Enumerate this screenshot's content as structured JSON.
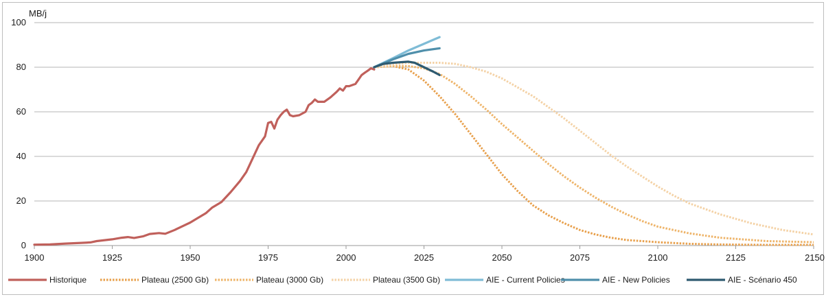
{
  "chart_data": {
    "type": "line",
    "ylabel": "MB/j",
    "xlim": [
      1900,
      2150
    ],
    "ylim": [
      0,
      100
    ],
    "x_ticks": [
      1900,
      1925,
      1950,
      1975,
      2000,
      2025,
      2050,
      2075,
      2100,
      2125,
      2150
    ],
    "y_ticks": [
      0,
      20,
      40,
      60,
      80,
      100
    ],
    "grid": "horizontal",
    "legend_position": "bottom",
    "series": [
      {
        "name": "Historique",
        "color": "#c0605b",
        "style": "solid",
        "points": [
          [
            1900,
            0.4
          ],
          [
            1905,
            0.5
          ],
          [
            1910,
            0.9
          ],
          [
            1915,
            1.2
          ],
          [
            1918,
            1.4
          ],
          [
            1920,
            2.0
          ],
          [
            1925,
            2.8
          ],
          [
            1928,
            3.5
          ],
          [
            1930,
            3.8
          ],
          [
            1932,
            3.4
          ],
          [
            1935,
            4.2
          ],
          [
            1937,
            5.2
          ],
          [
            1940,
            5.6
          ],
          [
            1942,
            5.3
          ],
          [
            1945,
            7.0
          ],
          [
            1948,
            9.0
          ],
          [
            1950,
            10.3
          ],
          [
            1952,
            12.0
          ],
          [
            1955,
            14.5
          ],
          [
            1957,
            17.0
          ],
          [
            1960,
            19.5
          ],
          [
            1963,
            24.0
          ],
          [
            1966,
            29.0
          ],
          [
            1968,
            33.0
          ],
          [
            1970,
            39.0
          ],
          [
            1972,
            45.0
          ],
          [
            1974,
            49.0
          ],
          [
            1975,
            55.0
          ],
          [
            1976,
            55.5
          ],
          [
            1977,
            52.5
          ],
          [
            1978,
            56.5
          ],
          [
            1979,
            58.5
          ],
          [
            1980,
            60.0
          ],
          [
            1981,
            61.0
          ],
          [
            1982,
            58.5
          ],
          [
            1983,
            58.0
          ],
          [
            1985,
            58.5
          ],
          [
            1987,
            60.0
          ],
          [
            1988,
            63.0
          ],
          [
            1989,
            64.0
          ],
          [
            1990,
            65.5
          ],
          [
            1991,
            64.5
          ],
          [
            1993,
            64.5
          ],
          [
            1995,
            66.5
          ],
          [
            1997,
            69.0
          ],
          [
            1998,
            70.5
          ],
          [
            1999,
            69.5
          ],
          [
            2000,
            71.5
          ],
          [
            2001,
            71.5
          ],
          [
            2003,
            72.5
          ],
          [
            2004,
            74.5
          ],
          [
            2005,
            76.5
          ],
          [
            2006,
            77.5
          ],
          [
            2007,
            78.5
          ],
          [
            2008,
            79.5
          ],
          [
            2009,
            79.0
          ]
        ]
      },
      {
        "name": "Plateau (2500 Gb)",
        "color": "#e8a04c",
        "style": "dotted",
        "points": [
          [
            2009,
            80.0
          ],
          [
            2015,
            80.5
          ],
          [
            2020,
            79.0
          ],
          [
            2025,
            74.0
          ],
          [
            2030,
            67.0
          ],
          [
            2035,
            59.0
          ],
          [
            2040,
            50.0
          ],
          [
            2045,
            41.0
          ],
          [
            2050,
            32.0
          ],
          [
            2055,
            24.5
          ],
          [
            2060,
            18.0
          ],
          [
            2065,
            13.5
          ],
          [
            2070,
            10.0
          ],
          [
            2075,
            7.0
          ],
          [
            2080,
            5.0
          ],
          [
            2085,
            3.5
          ],
          [
            2090,
            2.5
          ],
          [
            2100,
            1.5
          ],
          [
            2110,
            0.8
          ],
          [
            2120,
            0.5
          ],
          [
            2135,
            0.3
          ],
          [
            2150,
            0.3
          ]
        ]
      },
      {
        "name": "Plateau (3000 Gb)",
        "color": "#eeb469",
        "style": "dotted",
        "points": [
          [
            2009,
            80.0
          ],
          [
            2015,
            80.5
          ],
          [
            2020,
            80.5
          ],
          [
            2025,
            79.5
          ],
          [
            2030,
            77.0
          ],
          [
            2035,
            72.5
          ],
          [
            2040,
            67.0
          ],
          [
            2045,
            61.0
          ],
          [
            2050,
            54.5
          ],
          [
            2055,
            48.5
          ],
          [
            2060,
            42.5
          ],
          [
            2065,
            36.5
          ],
          [
            2070,
            31.0
          ],
          [
            2075,
            26.0
          ],
          [
            2080,
            21.5
          ],
          [
            2085,
            17.5
          ],
          [
            2090,
            14.0
          ],
          [
            2095,
            11.0
          ],
          [
            2100,
            8.5
          ],
          [
            2110,
            5.5
          ],
          [
            2120,
            3.5
          ],
          [
            2135,
            2.0
          ],
          [
            2150,
            1.5
          ]
        ]
      },
      {
        "name": "Plateau (3500 Gb)",
        "color": "#f4d2a6",
        "style": "dotted",
        "points": [
          [
            2009,
            80.0
          ],
          [
            2020,
            82.0
          ],
          [
            2030,
            82.0
          ],
          [
            2035,
            81.5
          ],
          [
            2040,
            80.0
          ],
          [
            2045,
            78.0
          ],
          [
            2050,
            75.0
          ],
          [
            2055,
            71.0
          ],
          [
            2060,
            67.0
          ],
          [
            2065,
            62.0
          ],
          [
            2070,
            57.0
          ],
          [
            2075,
            51.5
          ],
          [
            2080,
            46.0
          ],
          [
            2085,
            40.5
          ],
          [
            2090,
            35.5
          ],
          [
            2095,
            31.0
          ],
          [
            2100,
            26.5
          ],
          [
            2105,
            22.5
          ],
          [
            2110,
            19.0
          ],
          [
            2120,
            14.0
          ],
          [
            2130,
            10.0
          ],
          [
            2140,
            7.0
          ],
          [
            2150,
            5.0
          ]
        ]
      },
      {
        "name": "AIE - Current Policies",
        "color": "#7fbcd6",
        "style": "solid",
        "points": [
          [
            2009,
            80.0
          ],
          [
            2015,
            84.0
          ],
          [
            2020,
            87.5
          ],
          [
            2025,
            90.5
          ],
          [
            2030,
            93.5
          ]
        ]
      },
      {
        "name": "AIE - New Policies",
        "color": "#4f8fab",
        "style": "solid",
        "points": [
          [
            2009,
            80.0
          ],
          [
            2015,
            83.5
          ],
          [
            2020,
            86.0
          ],
          [
            2025,
            87.5
          ],
          [
            2030,
            88.5
          ]
        ]
      },
      {
        "name": "AIE - Scénario 450",
        "color": "#2e5a70",
        "style": "solid",
        "points": [
          [
            2009,
            80.0
          ],
          [
            2012,
            81.5
          ],
          [
            2015,
            82.0
          ],
          [
            2020,
            82.5
          ],
          [
            2022,
            82.0
          ],
          [
            2025,
            80.0
          ],
          [
            2028,
            78.0
          ],
          [
            2030,
            76.5
          ]
        ]
      }
    ]
  }
}
